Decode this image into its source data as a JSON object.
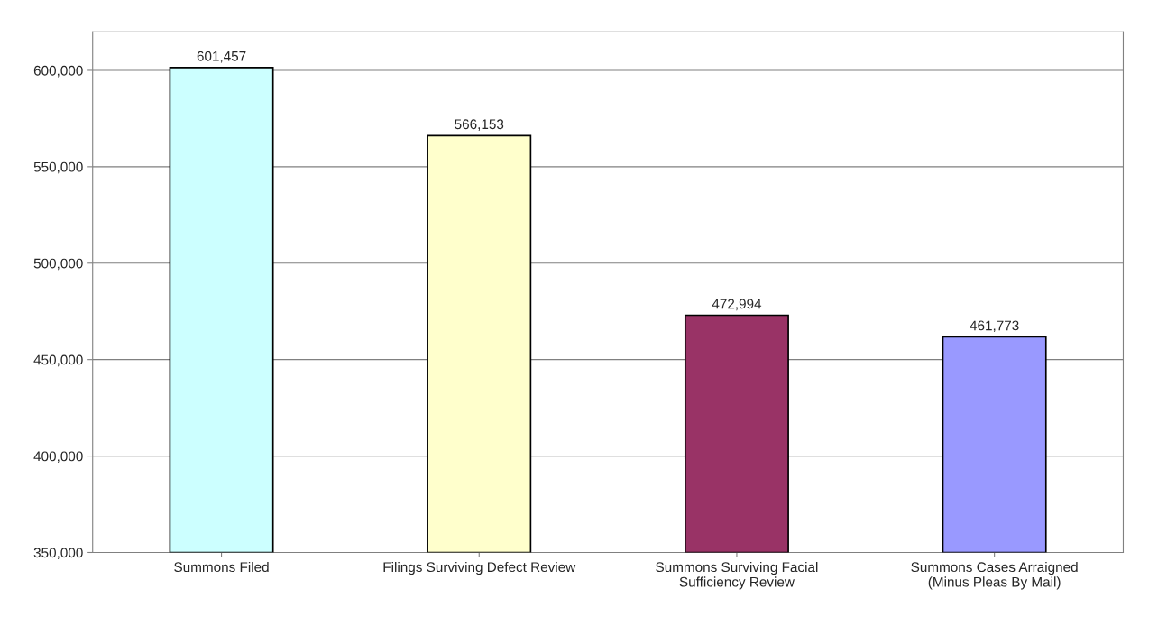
{
  "chart_data": {
    "type": "bar",
    "categories": [
      "Summons Filed",
      "Filings Surviving Defect Review",
      "Summons Surviving Facial\nSufficiency Review",
      "Summons Cases Arraigned\n(Minus Pleas By Mail)"
    ],
    "values": [
      601457,
      566153,
      472994,
      461773
    ],
    "colors": [
      "#ccffff",
      "#ffffcc",
      "#993366",
      "#9999ff"
    ],
    "value_labels": [
      "601,457",
      "566,153",
      "472,994",
      "461,773"
    ],
    "ylim": [
      350000,
      620000
    ],
    "yticks": [
      {
        "value": 350000,
        "label": "350,000"
      },
      {
        "value": 400000,
        "label": "400,000"
      },
      {
        "value": 450000,
        "label": "450,000"
      },
      {
        "value": 500000,
        "label": "500,000"
      },
      {
        "value": 550000,
        "label": "550,000"
      },
      {
        "value": 600000,
        "label": "600,000"
      }
    ],
    "grid": "y"
  }
}
